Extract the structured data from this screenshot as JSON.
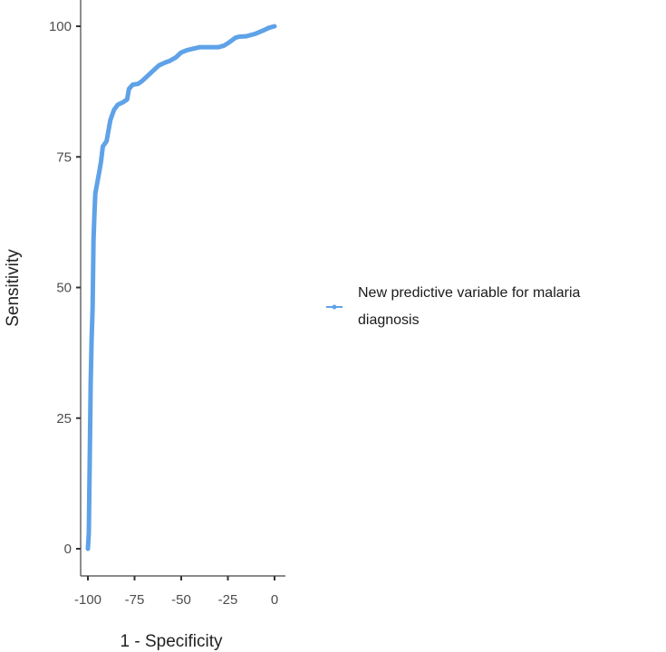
{
  "chart_data": {
    "type": "line",
    "title": "",
    "xlabel": "1 - Specificity",
    "ylabel": "Sensitivity",
    "xlim": [
      -100,
      0
    ],
    "ylim": [
      0,
      100
    ],
    "xticks": [
      -100,
      -75,
      -50,
      -25,
      0
    ],
    "yticks": [
      0,
      25,
      50,
      75,
      100
    ],
    "grid": false,
    "legend_position": "right",
    "series": [
      {
        "name": "New predictive variable for malaria diagnosis",
        "color": "#5fa2e8",
        "x": [
          -100,
          -99.5,
          -99,
          -98.5,
          -98,
          -97.5,
          -97,
          -96.5,
          -96,
          -95,
          -94,
          -93,
          -92,
          -90,
          -89,
          -88,
          -86,
          -84,
          -81,
          -79,
          -78,
          -76,
          -73,
          -71,
          -68,
          -65,
          -62,
          -59,
          -56,
          -53,
          -50,
          -47,
          -45,
          -40,
          -35,
          -30,
          -27,
          -24,
          -21,
          -19,
          -15,
          -10,
          -6,
          -3,
          0
        ],
        "y": [
          0,
          3,
          18,
          32,
          40,
          46,
          59,
          64,
          68,
          70,
          72,
          74,
          77,
          78,
          80,
          82,
          84,
          85,
          85.5,
          86,
          88,
          88.8,
          89,
          89.5,
          90.5,
          91.5,
          92.5,
          93,
          93.4,
          94,
          95,
          95.4,
          95.6,
          96,
          96,
          96,
          96.3,
          97,
          97.8,
          98,
          98.1,
          98.6,
          99.2,
          99.7,
          100
        ]
      }
    ]
  }
}
